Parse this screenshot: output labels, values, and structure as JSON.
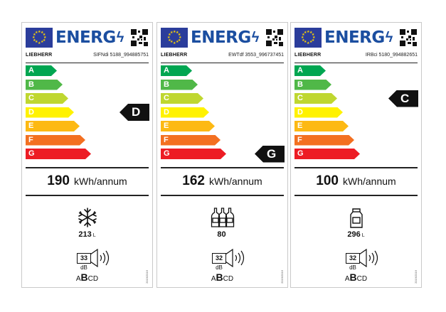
{
  "energy_word": "ENERG",
  "bolt_glyph": "ϟ",
  "scale_letters": [
    "A",
    "B",
    "C",
    "D",
    "E",
    "F",
    "G"
  ],
  "scale_colors": [
    "#00a651",
    "#50b848",
    "#bfd730",
    "#fff200",
    "#fdb913",
    "#f37021",
    "#ed1c24"
  ],
  "eu_blue": "#1b4ea0",
  "labels": [
    {
      "brand": "LIEBHERR",
      "model": "SIFNdi 5188_994885751",
      "class": "D",
      "consumption": "190",
      "unit": "kWh/annum",
      "icon": "snowflake-icon",
      "capacity": "213",
      "capacity_unit": "L",
      "noise_db": "33",
      "noise_unit": "dB",
      "noise_class": "B",
      "noise_scale": [
        "A",
        "B",
        "C",
        "D"
      ],
      "reg": "2019/2016"
    },
    {
      "brand": "LIEBHERR",
      "model": "EWTdf 3553_996737451",
      "class": "G",
      "consumption": "162",
      "unit": "kWh/annum",
      "icon": "wine-bottles-icon",
      "capacity": "80",
      "capacity_unit": "",
      "noise_db": "32",
      "noise_unit": "dB",
      "noise_class": "B",
      "noise_scale": [
        "A",
        "B",
        "C",
        "D"
      ],
      "reg": "2019/2016"
    },
    {
      "brand": "LIEBHERR",
      "model": "IRBci 5180_994882651",
      "class": "C",
      "consumption": "100",
      "unit": "kWh/annum",
      "icon": "milk-carton-icon",
      "capacity": "296",
      "capacity_unit": "L",
      "noise_db": "32",
      "noise_unit": "dB",
      "noise_class": "B",
      "noise_scale": [
        "A",
        "B",
        "C",
        "D"
      ],
      "reg": "2019/2016"
    }
  ]
}
